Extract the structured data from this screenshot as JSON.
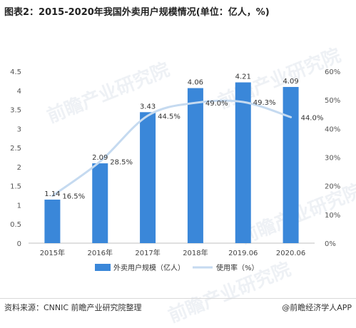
{
  "page": {
    "title": "图表2：2015-2020年我国外卖用户规模情况(单位：亿人，%)",
    "watermark": "前瞻产业研究院",
    "source": "资料来源：CNNIC 前瞻产业研究院整理",
    "brand": "@前瞻经济学人APP"
  },
  "chart_data": {
    "type": "bar",
    "categories": [
      "2015年",
      "2016年",
      "2017年",
      "2018年",
      "2019.06",
      "2020.06"
    ],
    "series": [
      {
        "name": "外卖用户规模（亿人）",
        "type": "bar",
        "axis": "left",
        "color": "#3a87d9",
        "values": [
          1.14,
          2.09,
          3.43,
          4.06,
          4.21,
          4.09
        ],
        "labels": [
          "1.14",
          "2.09",
          "3.43",
          "4.06",
          "4.21",
          "4.09"
        ]
      },
      {
        "name": "使用率（%）",
        "type": "line",
        "axis": "right",
        "color": "#c5daf0",
        "values": [
          16.5,
          28.5,
          44.5,
          49.0,
          49.3,
          44.0
        ],
        "labels": [
          "16.5%",
          "28.5%",
          "44.5%",
          "49.0%",
          "49.3%",
          "44.0%"
        ]
      }
    ],
    "y_left": {
      "ylim": [
        0,
        4.5
      ],
      "ticks": [
        "0",
        "0.5",
        "1",
        "1.5",
        "2",
        "2.5",
        "3",
        "3.5",
        "4",
        "4.5"
      ]
    },
    "y_right": {
      "ylim": [
        0,
        60
      ],
      "ticks": [
        "0%",
        "10%",
        "20%",
        "30%",
        "40%",
        "50%",
        "60%"
      ]
    },
    "grid": false,
    "legend_position": "bottom-center"
  }
}
